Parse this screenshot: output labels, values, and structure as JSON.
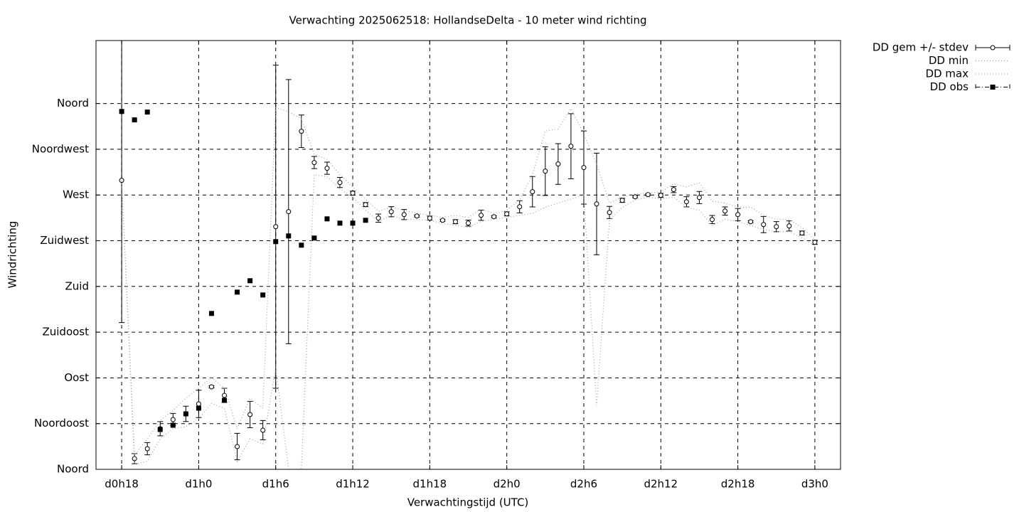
{
  "chart_data": {
    "type": "line",
    "title": "Verwachting 2025062518: HollandseDelta - 10 meter wind richting",
    "x_label": "Verwachtingstijd (UTC)",
    "y_label": "Windrichting",
    "xlim": [
      16,
      74
    ],
    "ylim": [
      0,
      422
    ],
    "xticks": [
      {
        "value": 18,
        "label": "d0h18"
      },
      {
        "value": 24,
        "label": "d1h0"
      },
      {
        "value": 30,
        "label": "d1h6"
      },
      {
        "value": 36,
        "label": "d1h12"
      },
      {
        "value": 42,
        "label": "d1h18"
      },
      {
        "value": 48,
        "label": "d2h0"
      },
      {
        "value": 54,
        "label": "d2h6"
      },
      {
        "value": 60,
        "label": "d2h12"
      },
      {
        "value": 66,
        "label": "d2h18"
      },
      {
        "value": 72,
        "label": "d3h0"
      }
    ],
    "yticks": [
      {
        "value": 0,
        "label": "Noord"
      },
      {
        "value": 45,
        "label": "Noordoost"
      },
      {
        "value": 90,
        "label": "Oost"
      },
      {
        "value": 135,
        "label": "Zuidoost"
      },
      {
        "value": 180,
        "label": "Zuid"
      },
      {
        "value": 225,
        "label": "Zuidwest"
      },
      {
        "value": 270,
        "label": "West"
      },
      {
        "value": 315,
        "label": "Noordwest"
      },
      {
        "value": 360,
        "label": "Noord"
      }
    ],
    "grid": true,
    "legend": "outside-top-right",
    "series": [
      {
        "name": "DD gem +/- stdev",
        "color": "#000000",
        "style": "errorbars",
        "x": [
          18,
          19,
          20,
          21,
          22,
          23,
          24,
          25,
          26,
          27,
          28,
          29,
          30,
          31,
          32,
          33,
          34,
          35,
          36,
          37,
          38,
          39,
          40,
          41,
          42,
          43,
          44,
          45,
          46,
          47,
          48,
          49,
          50,
          51,
          52,
          53,
          54,
          55,
          56,
          57,
          58,
          59,
          60,
          61,
          62,
          63,
          64,
          65,
          66,
          67,
          68,
          69,
          70,
          71,
          72
        ],
        "values": [
          284.4,
          10.5,
          20.3,
          40,
          49,
          54.6,
          64.4,
          81.2,
          72.8,
          22.4,
          53.9,
          38.5,
          238.8,
          253.6,
          332.7,
          301.9,
          296.3,
          282.3,
          271.8,
          260.5,
          247.2,
          253.5,
          250.7,
          249.3,
          247.2,
          245.1,
          243.7,
          242.3,
          250,
          248.6,
          251.4,
          258.4,
          273.2,
          293.5,
          300.5,
          318,
          297,
          261.2,
          252.8,
          264.7,
          268.2,
          270.4,
          269.6,
          275.3,
          263.3,
          267.5,
          245.8,
          254.2,
          250.7,
          243.7,
          240.9,
          238.8,
          239.5,
          232.5,
          223.4
        ],
        "errors": [
          140,
          5,
          6,
          7,
          6,
          7.5,
          13.5,
          1,
          7,
          13,
          13,
          9.5,
          159,
          130,
          16,
          6,
          6,
          5,
          2,
          2,
          4,
          5,
          5,
          1,
          2,
          1,
          2,
          3,
          5,
          1,
          2,
          6,
          15,
          24,
          20,
          32,
          36,
          50,
          6,
          2,
          1,
          1,
          2,
          3,
          5,
          6,
          4,
          4,
          6,
          1,
          8,
          5,
          5,
          2,
          2
        ]
      },
      {
        "name": "DD min",
        "color": "#a0a0a0",
        "style": "dotted",
        "x": [
          18,
          19,
          20,
          21,
          22,
          23,
          24,
          25,
          26,
          27,
          28,
          29,
          30,
          31,
          32,
          33,
          34,
          35,
          36,
          37,
          38,
          39,
          40,
          41,
          42,
          43,
          44,
          45,
          46,
          47,
          48,
          49,
          50,
          51,
          52,
          53,
          54,
          55,
          56,
          57,
          58,
          59,
          60,
          61,
          62,
          63,
          64,
          65,
          66,
          67,
          68,
          69,
          70,
          71,
          72
        ],
        "values": [
          284,
          5,
          8,
          30,
          40,
          42,
          50,
          65,
          60,
          8,
          30,
          25,
          100,
          0,
          0,
          290,
          288,
          276,
          268,
          255,
          244,
          250,
          246,
          246,
          245,
          242,
          240,
          238,
          244,
          246,
          248,
          250,
          252,
          258,
          262,
          266,
          270,
          63,
          245,
          258,
          265,
          268,
          266,
          268,
          258,
          255,
          240,
          246,
          244,
          240,
          236,
          234,
          234,
          228,
          220
        ]
      },
      {
        "name": "DD max",
        "color": "#a0a0a0",
        "style": "dotted",
        "x": [
          18,
          19,
          20,
          21,
          22,
          23,
          24,
          25,
          26,
          27,
          28,
          29,
          30,
          31,
          32,
          33,
          34,
          35,
          36,
          37,
          38,
          39,
          40,
          41,
          42,
          43,
          44,
          45,
          46,
          47,
          48,
          49,
          50,
          51,
          52,
          53,
          54,
          55,
          56,
          57,
          58,
          59,
          60,
          61,
          62,
          63,
          64,
          65,
          66,
          67,
          68,
          69,
          70,
          71,
          72
        ],
        "values": [
          284,
          14,
          30,
          48,
          58,
          70,
          80,
          90,
          80,
          40,
          70,
          60,
          356,
          352,
          345,
          310,
          305,
          290,
          278,
          266,
          254,
          258,
          255,
          252,
          250,
          248,
          250,
          248,
          256,
          252,
          255,
          265,
          290,
          333,
          335,
          355,
          330,
          300,
          262,
          268,
          271,
          272,
          273,
          281,
          278,
          282,
          264,
          262,
          258,
          258,
          250,
          246,
          246,
          238,
          226
        ]
      },
      {
        "name": "DD obs",
        "color": "#000000",
        "style": "squares",
        "x": [
          18,
          19,
          20,
          21,
          22,
          23,
          24,
          25,
          26,
          27,
          28,
          29,
          30,
          31,
          32,
          33,
          34,
          35,
          36,
          37
        ],
        "values": [
          352.2,
          343.9,
          351.6,
          39.2,
          43.4,
          54.6,
          60.2,
          153.4,
          67.9,
          174.4,
          185.6,
          171.6,
          224.1,
          229.7,
          220.6,
          227.6,
          246.5,
          242.3,
          242.3,
          245.1
        ]
      }
    ]
  }
}
